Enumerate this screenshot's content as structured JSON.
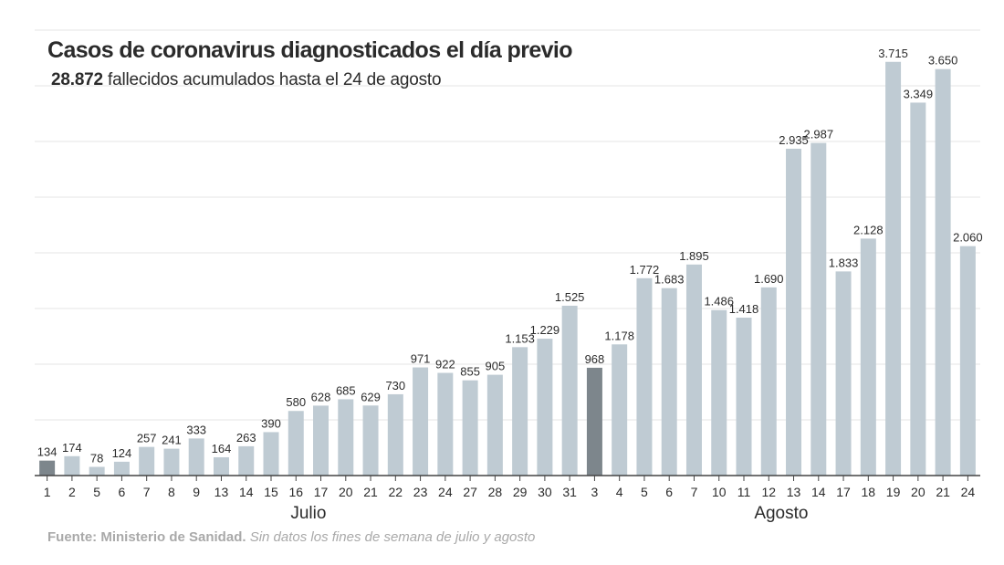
{
  "header": {
    "title": "Casos de coronavirus diagnosticados el día previo",
    "subtitle_value": "28.872",
    "subtitle_text": "fallecidos acumulados hasta el 24 de agosto"
  },
  "footer": {
    "source_label": "Fuente: Ministerio de Sanidad.",
    "note": "Sin datos los fines de semana de julio y agosto"
  },
  "colors": {
    "bar": "#bfcbd3",
    "highlight": "#7d868c",
    "grid": "#e6e6e6",
    "axis": "#444444",
    "text": "#2b2b2b"
  },
  "chart_data": {
    "type": "bar",
    "title": "Casos de coronavirus diagnosticados el día previo",
    "categories": [
      "1",
      "2",
      "5",
      "6",
      "7",
      "8",
      "9",
      "13",
      "14",
      "15",
      "16",
      "17",
      "20",
      "21",
      "22",
      "23",
      "24",
      "27",
      "28",
      "29",
      "30",
      "31",
      "3",
      "4",
      "5",
      "6",
      "7",
      "10",
      "11",
      "12",
      "13",
      "14",
      "17",
      "18",
      "19",
      "20",
      "21",
      "24"
    ],
    "values": [
      134,
      174,
      78,
      124,
      257,
      241,
      333,
      164,
      263,
      390,
      580,
      628,
      685,
      629,
      730,
      971,
      922,
      855,
      905,
      1153,
      1229,
      1525,
      968,
      1178,
      1772,
      1683,
      1895,
      1486,
      1418,
      1690,
      2935,
      2987,
      1833,
      2128,
      3715,
      3349,
      3650,
      2060
    ],
    "value_labels": [
      "134",
      "174",
      "78",
      "124",
      "257",
      "241",
      "333",
      "164",
      "263",
      "390",
      "580",
      "628",
      "685",
      "629",
      "730",
      "971",
      "922",
      "855",
      "905",
      "1.153",
      "1.229",
      "1.525",
      "968",
      "1.178",
      "1.772",
      "1.683",
      "1.895",
      "1.486",
      "1.418",
      "1.690",
      "2.935",
      "2.987",
      "1.833",
      "2.128",
      "3.715",
      "3.349",
      "3.650",
      "2.060"
    ],
    "highlighted_indices": [
      0,
      22
    ],
    "groups": [
      {
        "label": "Julio",
        "start": 0,
        "end": 21
      },
      {
        "label": "Agosto",
        "start": 22,
        "end": 37
      }
    ],
    "ylim": [
      0,
      4000
    ],
    "grid": true,
    "xlabel": "",
    "ylabel": ""
  }
}
